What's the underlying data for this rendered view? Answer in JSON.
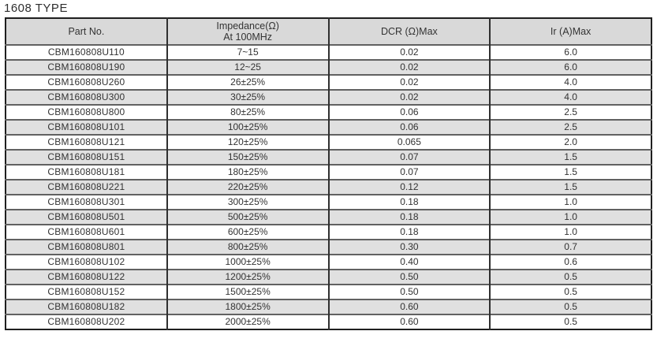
{
  "title": "1608 TYPE",
  "table": {
    "headers": {
      "part_no": "Part No.",
      "impedance_line1": "Impedance(Ω)",
      "impedance_line2": "At 100MHz",
      "dcr": "DCR (Ω)Max",
      "ir": "Ir (A)Max"
    },
    "rows": [
      {
        "part_no": "CBM160808U110",
        "impedance": "7~15",
        "dcr": "0.02",
        "ir": "6.0"
      },
      {
        "part_no": "CBM160808U190",
        "impedance": "12~25",
        "dcr": "0.02",
        "ir": "6.0"
      },
      {
        "part_no": "CBM160808U260",
        "impedance": "26±25%",
        "dcr": "0.02",
        "ir": "4.0"
      },
      {
        "part_no": "CBM160808U300",
        "impedance": "30±25%",
        "dcr": "0.02",
        "ir": "4.0"
      },
      {
        "part_no": "CBM160808U800",
        "impedance": "80±25%",
        "dcr": "0.06",
        "ir": "2.5"
      },
      {
        "part_no": "CBM160808U101",
        "impedance": "100±25%",
        "dcr": "0.06",
        "ir": "2.5"
      },
      {
        "part_no": "CBM160808U121",
        "impedance": "120±25%",
        "dcr": "0.065",
        "ir": "2.0"
      },
      {
        "part_no": "CBM160808U151",
        "impedance": "150±25%",
        "dcr": "0.07",
        "ir": "1.5"
      },
      {
        "part_no": "CBM160808U181",
        "impedance": "180±25%",
        "dcr": "0.07",
        "ir": "1.5"
      },
      {
        "part_no": "CBM160808U221",
        "impedance": "220±25%",
        "dcr": "0.12",
        "ir": "1.5"
      },
      {
        "part_no": "CBM160808U301",
        "impedance": "300±25%",
        "dcr": "0.18",
        "ir": "1.0"
      },
      {
        "part_no": "CBM160808U501",
        "impedance": "500±25%",
        "dcr": "0.18",
        "ir": "1.0"
      },
      {
        "part_no": "CBM160808U601",
        "impedance": "600±25%",
        "dcr": "0.18",
        "ir": "1.0"
      },
      {
        "part_no": "CBM160808U801",
        "impedance": "800±25%",
        "dcr": "0.30",
        "ir": "0.7"
      },
      {
        "part_no": "CBM160808U102",
        "impedance": "1000±25%",
        "dcr": "0.40",
        "ir": "0.6"
      },
      {
        "part_no": "CBM160808U122",
        "impedance": "1200±25%",
        "dcr": "0.50",
        "ir": "0.5"
      },
      {
        "part_no": "CBM160808U152",
        "impedance": "1500±25%",
        "dcr": "0.50",
        "ir": "0.5"
      },
      {
        "part_no": "CBM160808U182",
        "impedance": "1800±25%",
        "dcr": "0.60",
        "ir": "0.5"
      },
      {
        "part_no": "CBM160808U202",
        "impedance": "2000±25%",
        "dcr": "0.60",
        "ir": "0.5"
      }
    ]
  },
  "colors": {
    "header_bg": "#d9d9d9",
    "row_alt_bg": "#e0e0e0",
    "row_bg": "#ffffff",
    "border_outer": "#1f1f1f",
    "border_v": "#2f2f2f",
    "border_h": "#616161",
    "text": "#333333"
  }
}
